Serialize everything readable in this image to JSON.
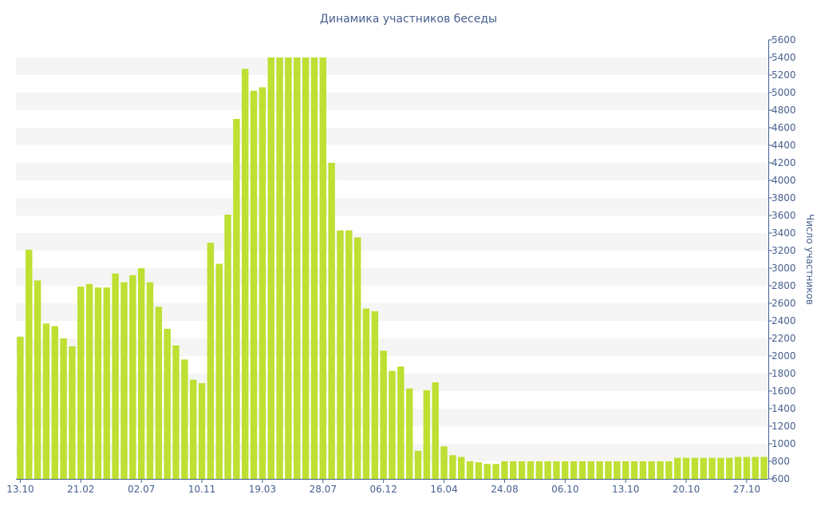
{
  "chart_data": {
    "type": "bar",
    "title": "Динамика участников беседы",
    "xlabel": "",
    "ylabel": "Число участников",
    "ylim": [
      600,
      5600
    ],
    "y_ticks": [
      600,
      800,
      1000,
      1200,
      1400,
      1600,
      1800,
      2000,
      2200,
      2400,
      2600,
      2800,
      3000,
      3200,
      3400,
      3600,
      3800,
      4000,
      4200,
      4400,
      4600,
      4800,
      5000,
      5200,
      5400,
      5600
    ],
    "x_tick_labels": [
      {
        "index": 0,
        "label": "13.10"
      },
      {
        "index": 7,
        "label": "21.02"
      },
      {
        "index": 14,
        "label": "02.07"
      },
      {
        "index": 21,
        "label": "10.11"
      },
      {
        "index": 28,
        "label": "19.03"
      },
      {
        "index": 35,
        "label": "28.07"
      },
      {
        "index": 42,
        "label": "06.12"
      },
      {
        "index": 49,
        "label": "16.04"
      },
      {
        "index": 56,
        "label": "24.08"
      },
      {
        "index": 63,
        "label": "06.10"
      },
      {
        "index": 70,
        "label": "13.10"
      },
      {
        "index": 77,
        "label": "20.10"
      },
      {
        "index": 84,
        "label": "27.10"
      }
    ],
    "grid": "horizontal-bands",
    "bar_color": "#bde033",
    "band_color": "#f5f5f5",
    "axis_color": "#465f8e",
    "values": [
      2220,
      3210,
      2860,
      2370,
      2340,
      2200,
      2110,
      2790,
      2820,
      2780,
      2780,
      2940,
      2840,
      2920,
      3000,
      2840,
      2560,
      2310,
      2120,
      1960,
      1730,
      1690,
      3290,
      3050,
      3610,
      4700,
      5270,
      5020,
      5060,
      5400,
      5400,
      5400,
      5400,
      5400,
      5400,
      5400,
      4200,
      3430,
      3430,
      3350,
      2540,
      2510,
      2060,
      1830,
      1880,
      1630,
      920,
      1610,
      1700,
      970,
      870,
      850,
      800,
      790,
      770,
      770,
      800,
      800,
      800,
      800,
      800,
      800,
      800,
      800,
      800,
      800,
      800,
      800,
      800,
      800,
      800,
      800,
      800,
      800,
      800,
      800,
      840,
      840,
      840,
      840,
      840,
      840,
      840,
      850,
      850,
      850,
      850
    ]
  }
}
